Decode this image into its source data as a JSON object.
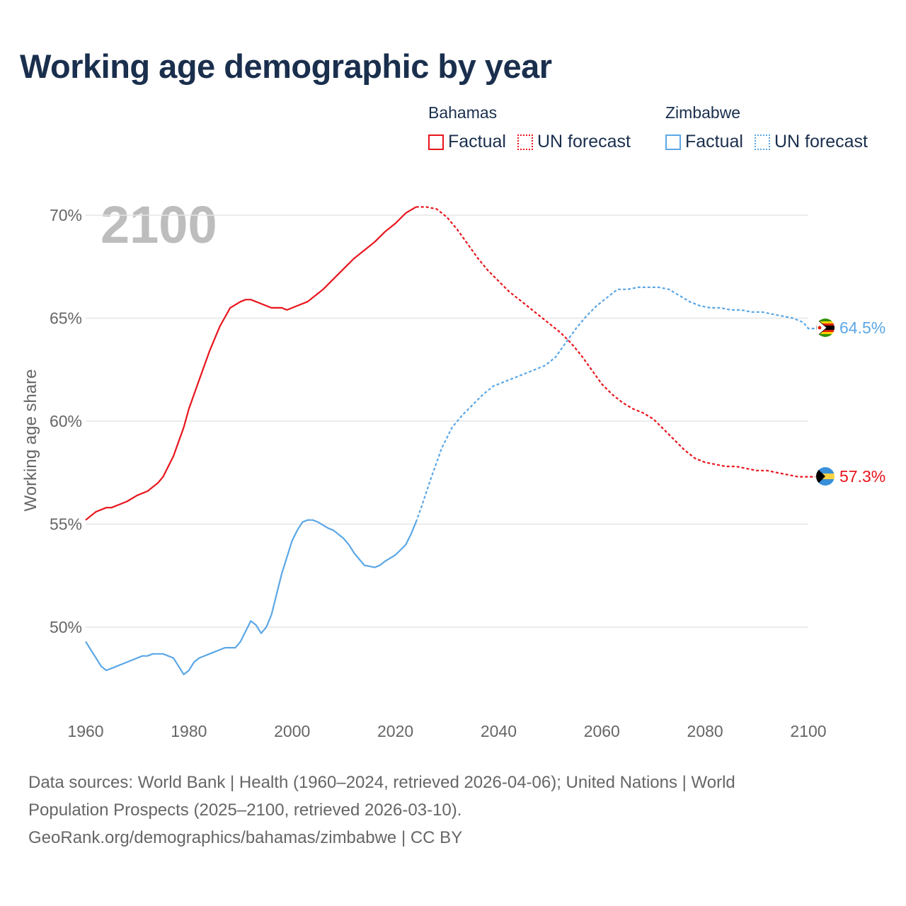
{
  "title": "Working age demographic by year",
  "year_watermark": "2100",
  "legend": {
    "groups": [
      {
        "country": "Bahamas",
        "color": "#e8141c",
        "factual_label": "Factual",
        "forecast_label": "UN forecast"
      },
      {
        "country": "Zimbabwe",
        "color": "#5ba7e6",
        "factual_label": "Factual",
        "forecast_label": "UN forecast"
      }
    ]
  },
  "sources": {
    "line1": "Data sources: World Bank | Health (1960–2024, retrieved 2026-04-06); United Nations | World",
    "line2": "Population Prospects (2025–2100, retrieved 2026-03-10).",
    "line3": "GeoRank.org/demographics/bahamas/zimbabwe | CC BY"
  },
  "chart_data": {
    "type": "line",
    "title": "Working age demographic by year",
    "xlabel": "",
    "ylabel": "Working age share",
    "xlim": [
      1960,
      2100
    ],
    "ylim": [
      46,
      72
    ],
    "x_ticks": [
      1960,
      1980,
      2000,
      2020,
      2040,
      2060,
      2080,
      2100
    ],
    "x_tick_labels": [
      "1960",
      "1980",
      "2000",
      "2020",
      "2040",
      "2060",
      "2080",
      "2100"
    ],
    "y_ticks": [
      50,
      55,
      60,
      65,
      70
    ],
    "y_tick_labels": [
      "50%",
      "55%",
      "60%",
      "65%",
      "70%"
    ],
    "series": [
      {
        "name": "Bahamas",
        "color": "#e8141c",
        "end_label": "57.3%",
        "factual": {
          "x": [
            1960,
            1962,
            1964,
            1965,
            1967,
            1968,
            1970,
            1972,
            1974,
            1975,
            1977,
            1979,
            1980,
            1982,
            1984,
            1986,
            1988,
            1990,
            1991,
            1992,
            1994,
            1996,
            1998,
            1999,
            2001,
            2003,
            2005,
            2006,
            2008,
            2010,
            2012,
            2014,
            2016,
            2018,
            2020,
            2022,
            2024
          ],
          "y": [
            55.2,
            55.6,
            55.8,
            55.8,
            56.0,
            56.1,
            56.4,
            56.6,
            57.0,
            57.3,
            58.3,
            59.7,
            60.6,
            62.0,
            63.4,
            64.6,
            65.5,
            65.8,
            65.9,
            65.9,
            65.7,
            65.5,
            65.5,
            65.4,
            65.6,
            65.8,
            66.2,
            66.4,
            66.9,
            67.4,
            67.9,
            68.3,
            68.7,
            69.2,
            69.6,
            70.1,
            70.4
          ]
        },
        "forecast": {
          "x": [
            2024,
            2025,
            2026,
            2028,
            2030,
            2032,
            2034,
            2036,
            2038,
            2040,
            2042,
            2044,
            2046,
            2048,
            2050,
            2052,
            2054,
            2056,
            2058,
            2060,
            2062,
            2064,
            2066,
            2068,
            2070,
            2072,
            2074,
            2076,
            2078,
            2080,
            2082,
            2084,
            2086,
            2088,
            2090,
            2092,
            2094,
            2096,
            2098,
            2100
          ],
          "y": [
            70.4,
            70.4,
            70.4,
            70.3,
            69.9,
            69.3,
            68.6,
            67.9,
            67.3,
            66.8,
            66.3,
            65.9,
            65.5,
            65.1,
            64.7,
            64.3,
            63.8,
            63.2,
            62.5,
            61.8,
            61.3,
            60.9,
            60.6,
            60.4,
            60.1,
            59.6,
            59.1,
            58.6,
            58.2,
            58.0,
            57.9,
            57.8,
            57.8,
            57.7,
            57.6,
            57.6,
            57.5,
            57.4,
            57.3,
            57.3
          ]
        }
      },
      {
        "name": "Zimbabwe",
        "color": "#5ba7e6",
        "end_label": "64.5%",
        "factual": {
          "x": [
            1960,
            1962,
            1963,
            1964,
            1966,
            1968,
            1970,
            1971,
            1972,
            1973,
            1975,
            1977,
            1979,
            1980,
            1981,
            1982,
            1984,
            1986,
            1987,
            1988,
            1989,
            1990,
            1991,
            1992,
            1993,
            1994,
            1995,
            1996,
            1998,
            1999,
            2000,
            2001,
            2002,
            2003,
            2004,
            2005,
            2007,
            2008,
            2010,
            2011,
            2012,
            2013,
            2014,
            2016,
            2017,
            2018,
            2020,
            2022,
            2023,
            2024
          ],
          "y": [
            49.3,
            48.5,
            48.1,
            47.9,
            48.1,
            48.3,
            48.5,
            48.6,
            48.6,
            48.7,
            48.7,
            48.5,
            47.7,
            47.9,
            48.3,
            48.5,
            48.7,
            48.9,
            49.0,
            49.0,
            49.0,
            49.3,
            49.8,
            50.3,
            50.1,
            49.7,
            50.0,
            50.6,
            52.6,
            53.4,
            54.2,
            54.7,
            55.1,
            55.2,
            55.2,
            55.1,
            54.8,
            54.7,
            54.3,
            54.0,
            53.6,
            53.3,
            53.0,
            52.9,
            53.0,
            53.2,
            53.5,
            54.0,
            54.5,
            55.1
          ]
        },
        "forecast": {
          "x": [
            2024,
            2025,
            2027,
            2029,
            2031,
            2033,
            2035,
            2037,
            2039,
            2041,
            2043,
            2045,
            2047,
            2049,
            2051,
            2053,
            2055,
            2057,
            2059,
            2061,
            2063,
            2065,
            2067,
            2069,
            2071,
            2073,
            2075,
            2077,
            2079,
            2081,
            2083,
            2085,
            2087,
            2089,
            2091,
            2093,
            2095,
            2097,
            2099,
            2100
          ],
          "y": [
            55.1,
            55.8,
            57.3,
            58.7,
            59.7,
            60.3,
            60.8,
            61.3,
            61.7,
            61.9,
            62.1,
            62.3,
            62.5,
            62.7,
            63.1,
            63.8,
            64.5,
            65.1,
            65.6,
            66.0,
            66.4,
            66.4,
            66.5,
            66.5,
            66.5,
            66.4,
            66.1,
            65.8,
            65.6,
            65.5,
            65.5,
            65.4,
            65.4,
            65.3,
            65.3,
            65.2,
            65.1,
            65.0,
            64.8,
            64.5
          ]
        }
      }
    ]
  }
}
